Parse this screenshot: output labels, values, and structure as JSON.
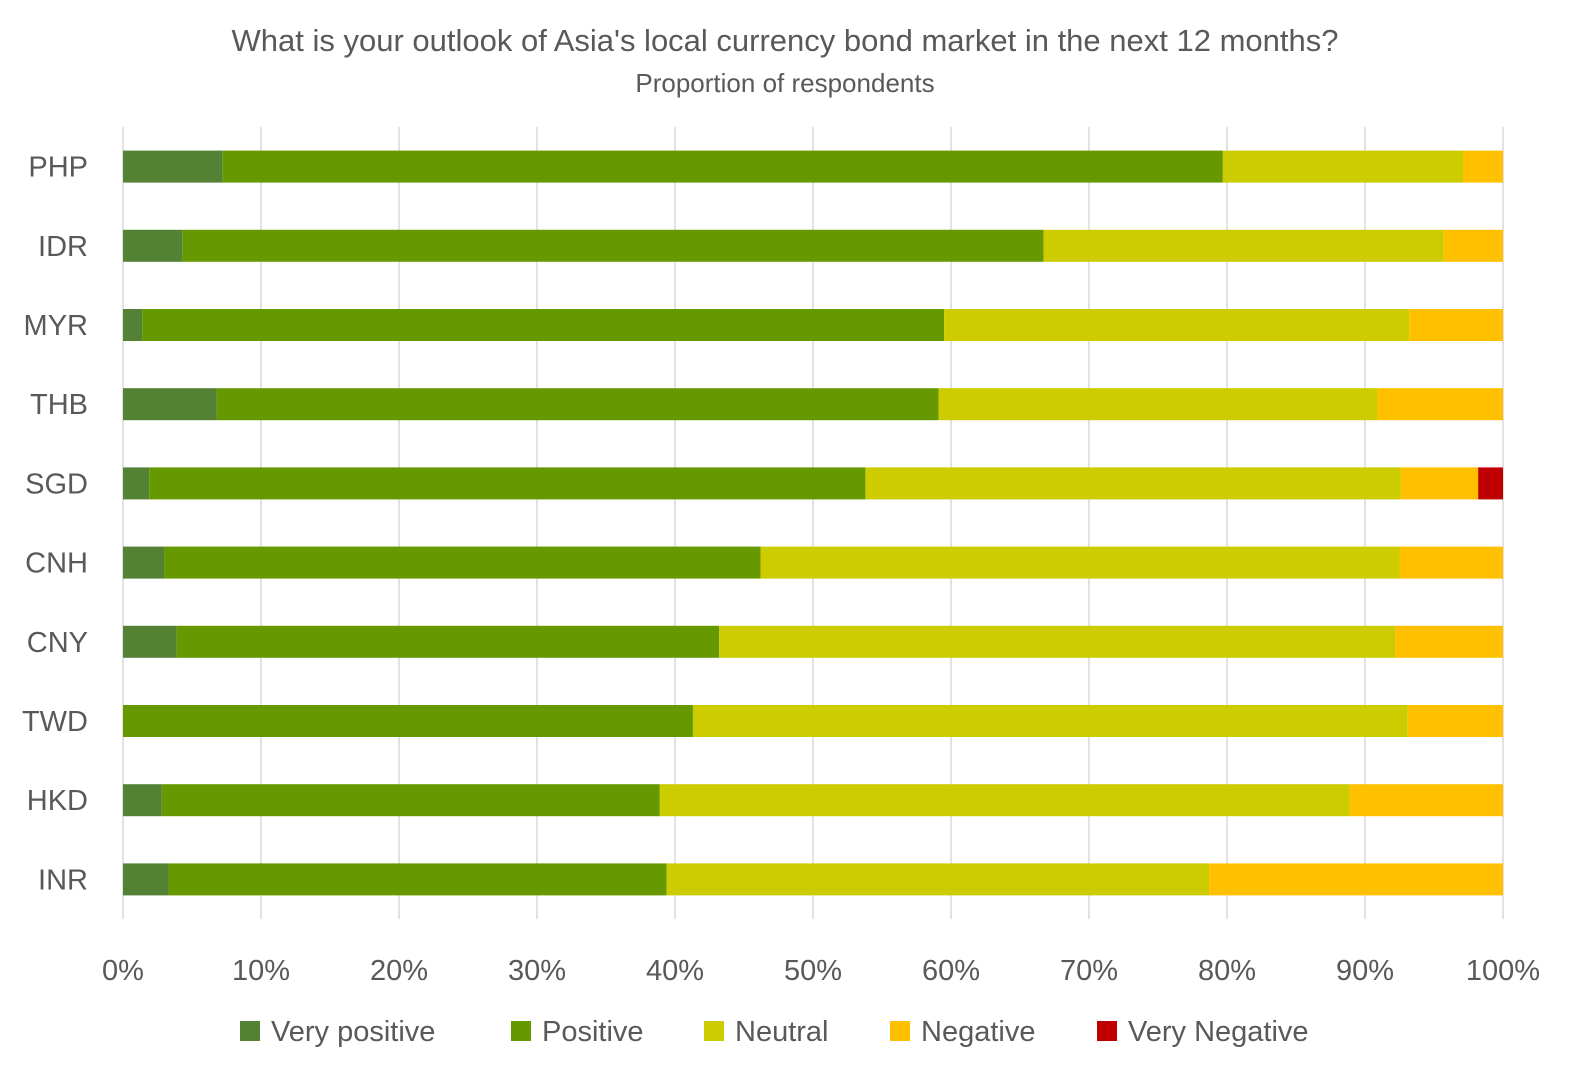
{
  "chart_data": {
    "type": "bar",
    "orientation": "horizontal",
    "stacked": true,
    "title": "What is your outlook of Asia's local currency bond market in the next 12 months?",
    "subtitle": "Proportion of respondents",
    "xlabel": "",
    "ylabel": "",
    "xlim": [
      0,
      100
    ],
    "x_ticks": [
      "0%",
      "10%",
      "20%",
      "30%",
      "40%",
      "50%",
      "60%",
      "70%",
      "80%",
      "90%",
      "100%"
    ],
    "grid": "vertical",
    "legend_position": "bottom",
    "categories": [
      "PHP",
      "IDR",
      "MYR",
      "THB",
      "SGD",
      "CNH",
      "CNY",
      "TWD",
      "HKD",
      "INR"
    ],
    "series": [
      {
        "name": "Very positive",
        "color": "#548235",
        "values": [
          7.2,
          4.3,
          1.4,
          6.8,
          1.9,
          3.0,
          3.9,
          0.0,
          2.8,
          3.3
        ]
      },
      {
        "name": "Positive",
        "color": "#669900",
        "values": [
          72.5,
          62.4,
          58.1,
          52.3,
          51.9,
          43.2,
          39.3,
          41.3,
          36.1,
          36.1
        ]
      },
      {
        "name": "Neutral",
        "color": "#CCCC00",
        "values": [
          17.4,
          29.0,
          33.7,
          31.8,
          38.8,
          46.3,
          49.0,
          51.8,
          50.0,
          39.3
        ]
      },
      {
        "name": "Negative",
        "color": "#FFC000",
        "values": [
          2.9,
          4.3,
          6.8,
          9.1,
          5.6,
          7.5,
          7.8,
          6.9,
          11.1,
          21.3
        ]
      },
      {
        "name": "Very Negative",
        "color": "#C00000",
        "values": [
          0.0,
          0.0,
          0.0,
          0.0,
          1.8,
          0.0,
          0.0,
          0.0,
          0.0,
          0.0
        ]
      }
    ]
  }
}
